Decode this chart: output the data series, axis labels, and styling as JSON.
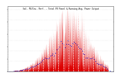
{
  "title": "Sol. PV/Inv. Perf. - Total PV Panel & Running Avg. Power Output",
  "bg_color": "#ffffff",
  "plot_bg_color": "#ffffff",
  "grid_color": "#cccccc",
  "bar_color": "#dd0000",
  "avg_color": "#0000cc",
  "title_color": "#000000",
  "tick_color": "#000000",
  "ylim": [
    0,
    1.0
  ],
  "num_points": 2000,
  "noise_seed": 7
}
